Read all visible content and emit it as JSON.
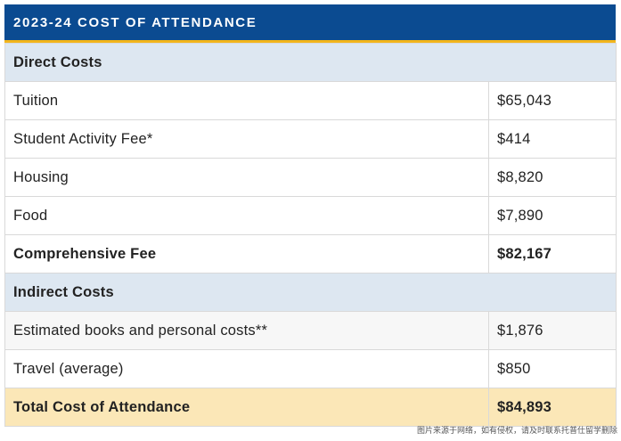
{
  "title": "2023-24 COST OF ATTENDANCE",
  "sections": {
    "direct": "Direct Costs",
    "indirect": "Indirect Costs"
  },
  "rows": [
    {
      "label": "Tuition",
      "value": "$65,043"
    },
    {
      "label": "Student Activity Fee*",
      "value": "$414"
    },
    {
      "label": "Housing",
      "value": "$8,820"
    },
    {
      "label": "Food",
      "value": "$7,890"
    },
    {
      "label": "Comprehensive Fee",
      "value": "$82,167"
    },
    {
      "label": "Estimated books and personal costs**",
      "value": "$1,876"
    },
    {
      "label": "Travel (average)",
      "value": "$850"
    },
    {
      "label": "Total Cost of Attendance",
      "value": "$84,893"
    }
  ],
  "watermark": "图片来源于网络，如有侵权，请及时联系托普仕留学删除",
  "colors": {
    "header_bg": "#0b4b91",
    "header_underline": "#f2b51b",
    "section_bg": "#dde7f1",
    "total_bg": "#fbe7b7"
  }
}
